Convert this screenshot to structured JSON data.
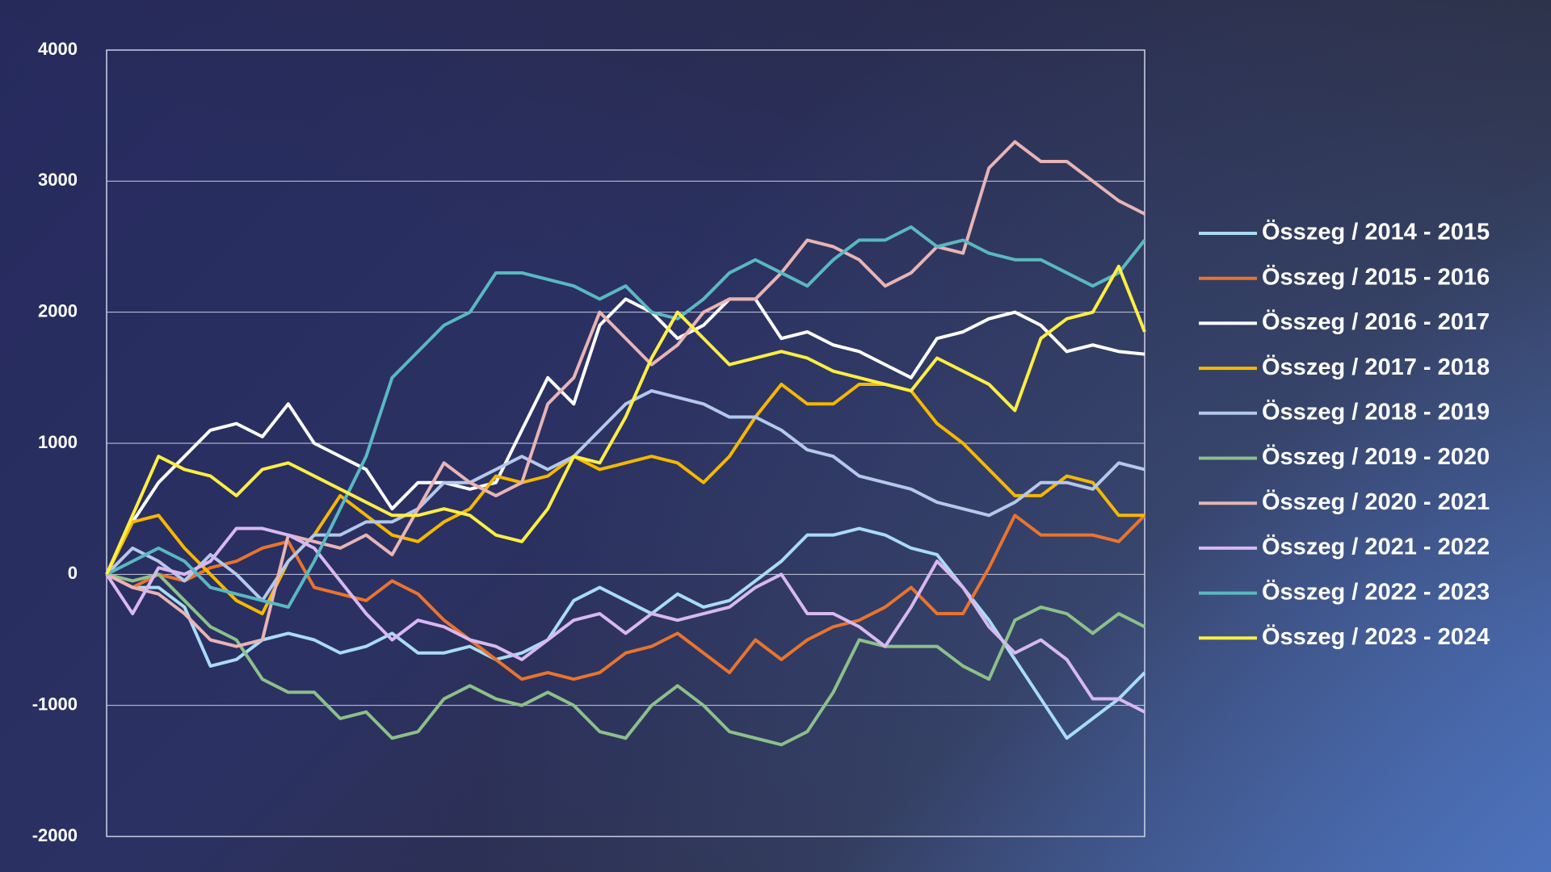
{
  "chart_data": {
    "type": "line",
    "ylim": [
      -2000,
      4000
    ],
    "yticks": [
      -2000,
      -1000,
      0,
      1000,
      2000,
      3000,
      4000
    ],
    "grid": true,
    "legend": "right",
    "series": [
      {
        "name": "Összeg / 2014 - 2015",
        "color": "#a8dcf5",
        "values": [
          0,
          -100,
          -100,
          -250,
          -700,
          -650,
          -500,
          -450,
          -500,
          -600,
          -550,
          -450,
          -600,
          -600,
          -550,
          -650,
          -600,
          -500,
          -200,
          -100,
          -200,
          -300,
          -150,
          -250,
          -200,
          -50,
          100,
          300,
          300,
          350,
          300,
          200,
          150,
          -100,
          -350,
          -650,
          -950,
          -1250,
          -1100,
          -950,
          -750
        ]
      },
      {
        "name": "Összeg / 2015 - 2016",
        "color": "#e8742f",
        "values": [
          0,
          -100,
          0,
          -50,
          50,
          100,
          200,
          250,
          -100,
          -150,
          -200,
          -50,
          -150,
          -350,
          -500,
          -650,
          -800,
          -750,
          -800,
          -750,
          -600,
          -550,
          -450,
          -600,
          -750,
          -500,
          -650,
          -500,
          -400,
          -350,
          -250,
          -100,
          -300,
          -300,
          50,
          450,
          300,
          300,
          300,
          250,
          450
        ]
      },
      {
        "name": "Összeg / 2016 - 2017",
        "color": "#ffffff",
        "values": [
          0,
          400,
          700,
          900,
          1100,
          1150,
          1050,
          1300,
          1000,
          900,
          800,
          500,
          700,
          700,
          650,
          700,
          1100,
          1500,
          1300,
          1900,
          2100,
          2000,
          1800,
          1900,
          2100,
          2100,
          1800,
          1850,
          1750,
          1700,
          1600,
          1500,
          1800,
          1850,
          1950,
          2000,
          1900,
          1700,
          1750,
          1700,
          1680
        ]
      },
      {
        "name": "Összeg / 2017 - 2018",
        "color": "#f5b800",
        "values": [
          0,
          400,
          450,
          200,
          0,
          -200,
          -300,
          100,
          300,
          600,
          450,
          300,
          250,
          400,
          500,
          750,
          700,
          750,
          900,
          800,
          850,
          900,
          850,
          700,
          900,
          1200,
          1450,
          1300,
          1300,
          1450,
          1450,
          1400,
          1150,
          1000,
          800,
          600,
          600,
          750,
          700,
          450,
          450
        ]
      },
      {
        "name": "Összeg / 2018 - 2019",
        "color": "#b4c8ea",
        "values": [
          0,
          200,
          100,
          -50,
          150,
          0,
          -200,
          100,
          300,
          300,
          400,
          400,
          500,
          700,
          700,
          800,
          900,
          800,
          900,
          1100,
          1300,
          1400,
          1350,
          1300,
          1200,
          1200,
          1100,
          950,
          900,
          750,
          700,
          650,
          550,
          500,
          450,
          550,
          700,
          700,
          650,
          850,
          800
        ]
      },
      {
        "name": "Összeg / 2019 - 2020",
        "color": "#8cc08a",
        "values": [
          0,
          -50,
          0,
          -200,
          -400,
          -500,
          -800,
          -900,
          -900,
          -1100,
          -1050,
          -1250,
          -1200,
          -950,
          -850,
          -950,
          -1000,
          -900,
          -1000,
          -1200,
          -1250,
          -1000,
          -850,
          -1000,
          -1200,
          -1250,
          -1300,
          -1200,
          -900,
          -500,
          -550,
          -550,
          -550,
          -700,
          -800,
          -350,
          -250,
          -300,
          -450,
          -300,
          -400
        ]
      },
      {
        "name": "Összeg / 2020 - 2021",
        "color": "#e8b4b4",
        "values": [
          0,
          -100,
          -150,
          -300,
          -500,
          -550,
          -500,
          300,
          250,
          200,
          300,
          150,
          500,
          850,
          700,
          600,
          700,
          1300,
          1500,
          2000,
          1800,
          1600,
          1750,
          2000,
          2100,
          2100,
          2300,
          2550,
          2500,
          2400,
          2200,
          2300,
          2500,
          2450,
          3100,
          3300,
          3150,
          3150,
          3000,
          2850,
          2750
        ]
      },
      {
        "name": "Összeg / 2021 - 2022",
        "color": "#d8b8f0",
        "values": [
          0,
          -300,
          50,
          0,
          100,
          350,
          350,
          300,
          200,
          -50,
          -300,
          -500,
          -350,
          -400,
          -500,
          -550,
          -650,
          -500,
          -350,
          -300,
          -450,
          -300,
          -350,
          -300,
          -250,
          -100,
          0,
          -300,
          -300,
          -400,
          -550,
          -250,
          100,
          -100,
          -400,
          -600,
          -500,
          -650,
          -950,
          -950,
          -1050
        ]
      },
      {
        "name": "Összeg / 2022 - 2023",
        "color": "#5ab8c0",
        "values": [
          0,
          100,
          200,
          100,
          -100,
          -150,
          -200,
          -250,
          100,
          500,
          900,
          1500,
          1700,
          1900,
          2000,
          2300,
          2300,
          2250,
          2200,
          2100,
          2200,
          2000,
          1950,
          2100,
          2300,
          2400,
          2300,
          2200,
          2400,
          2550,
          2550,
          2650,
          2500,
          2550,
          2450,
          2400,
          2400,
          2300,
          2200,
          2300,
          2550
        ]
      },
      {
        "name": "Összeg / 2023 - 2024",
        "color": "#ffee44",
        "values": [
          0,
          450,
          900,
          800,
          750,
          600,
          800,
          850,
          750,
          650,
          550,
          450,
          450,
          500,
          450,
          300,
          250,
          500,
          900,
          850,
          1200,
          1650,
          2000,
          1800,
          1600,
          1650,
          1700,
          1650,
          1550,
          1500,
          1450,
          1400,
          1650,
          1550,
          1450,
          1250,
          1800,
          1950,
          2000,
          2350,
          1850
        ]
      }
    ]
  }
}
